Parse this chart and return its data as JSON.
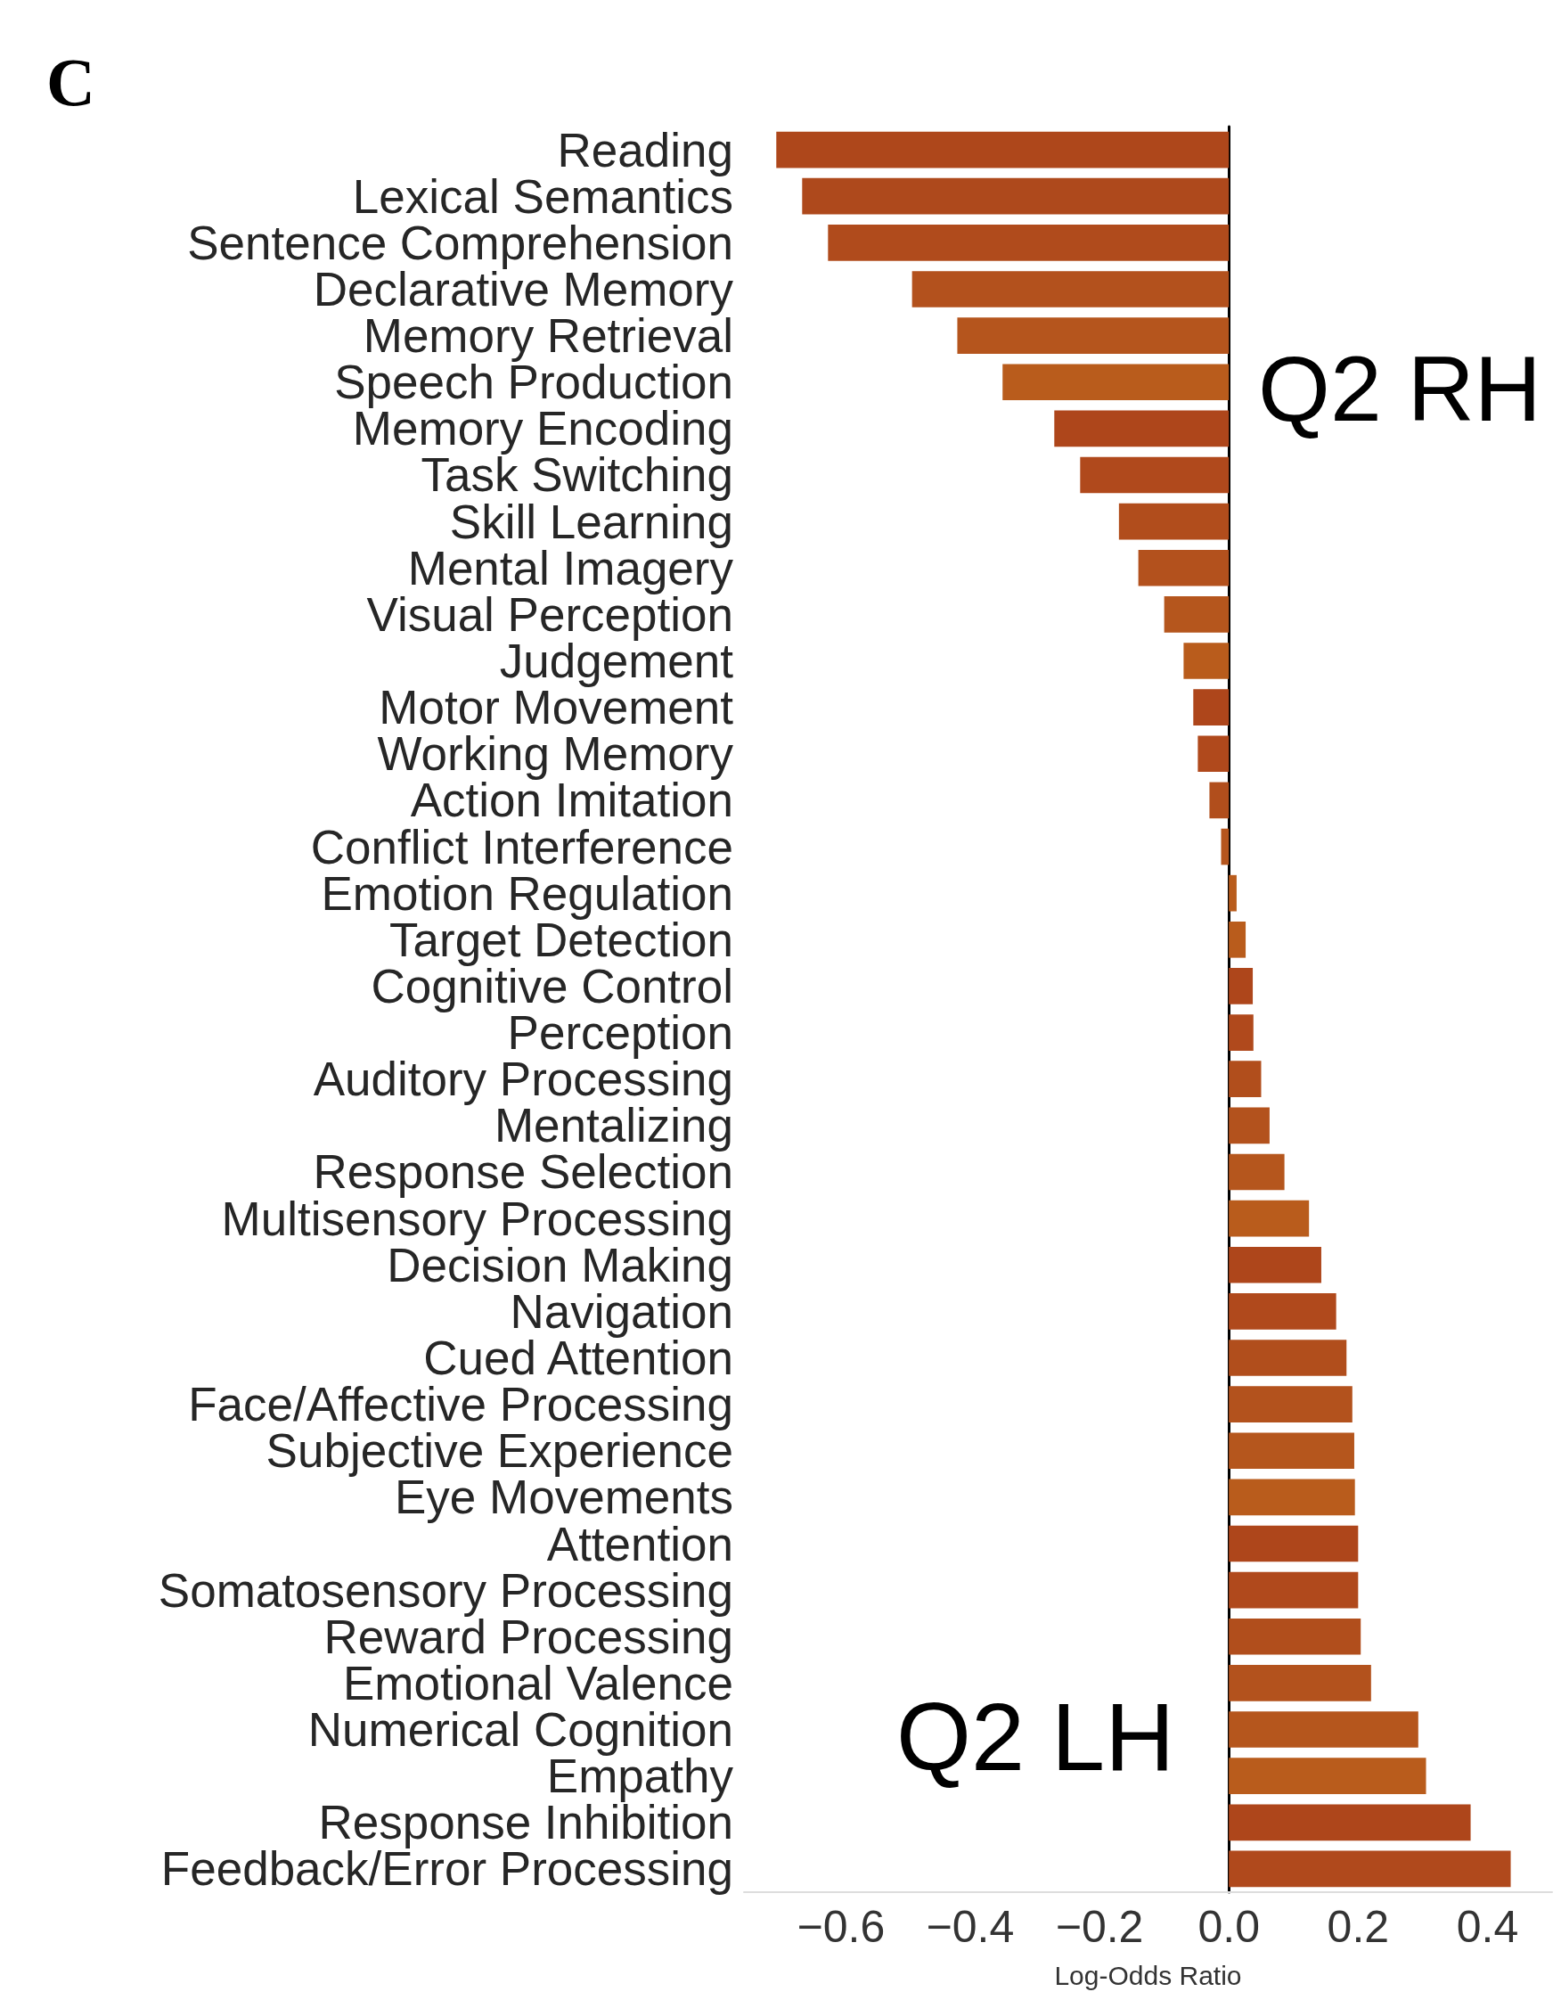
{
  "chart_data": {
    "type": "bar",
    "orientation": "horizontal",
    "categories": [
      "Reading",
      "Lexical Semantics",
      "Sentence Comprehension",
      "Declarative Memory",
      "Memory Retrieval",
      "Speech Production",
      "Memory Encoding",
      "Task Switching",
      "Skill Learning",
      "Mental Imagery",
      "Visual Perception",
      "Judgement",
      "Motor Movement",
      "Working Memory",
      "Action Imitation",
      "Conflict Interference",
      "Emotion Regulation",
      "Target Detection",
      "Cognitive Control",
      "Perception",
      "Auditory Processing",
      "Mentalizing",
      "Response Selection",
      "Multisensory Processing",
      "Decision Making",
      "Navigation",
      "Cued Attention",
      "Face/Affective Processing",
      "Subjective Experience",
      "Eye Movements",
      "Attention",
      "Somatosensory Processing",
      "Reward Processing",
      "Emotional Valence",
      "Numerical Cognition",
      "Empathy",
      "Response Inhibition",
      "Feedback/Error Processing"
    ],
    "values": [
      -0.7,
      -0.66,
      -0.62,
      -0.49,
      -0.42,
      -0.35,
      -0.27,
      -0.23,
      -0.17,
      -0.14,
      -0.1,
      -0.07,
      -0.055,
      -0.048,
      -0.03,
      -0.012,
      0.012,
      0.026,
      0.037,
      0.038,
      0.05,
      0.063,
      0.086,
      0.124,
      0.143,
      0.166,
      0.182,
      0.191,
      0.194,
      0.195,
      0.2,
      0.2,
      0.204,
      0.22,
      0.293,
      0.305,
      0.374,
      0.436
    ],
    "colors": [
      "#ae471b",
      "#ae491c",
      "#b04b1c",
      "#b3511d",
      "#b5551d",
      "#b95c1c",
      "#ae461b",
      "#b0491c",
      "#b14d1c",
      "#b3511d",
      "#b5561d",
      "#b95c1c",
      "#ae461b",
      "#b0491c",
      "#b14e1c",
      "#b5551d",
      "#b95c1c",
      "#b95c1c",
      "#ae461b",
      "#b0491c",
      "#b14e1c",
      "#b3521d",
      "#b5561d",
      "#b95c1c",
      "#ae461b",
      "#b0491c",
      "#b14e1c",
      "#b3521d",
      "#b5561d",
      "#b95c1c",
      "#ae461b",
      "#b0491c",
      "#b14e1c",
      "#b3521d",
      "#b5561d",
      "#b95c1c",
      "#ae461b",
      "#b0491c"
    ],
    "xlim": [
      -0.75,
      0.5
    ],
    "xticks": [
      {
        "value": -0.6,
        "label": "−0.6"
      },
      {
        "value": -0.4,
        "label": "−0.4"
      },
      {
        "value": -0.2,
        "label": "−0.2"
      },
      {
        "value": 0,
        "label": "0.0"
      },
      {
        "value": 0.2,
        "label": "0.2"
      },
      {
        "value": 0.4,
        "label": "0.4"
      }
    ],
    "xlabel": "Log-Odds Ratio",
    "annotations": [
      "C",
      "Q2 RH",
      "Q2 LH"
    ]
  }
}
